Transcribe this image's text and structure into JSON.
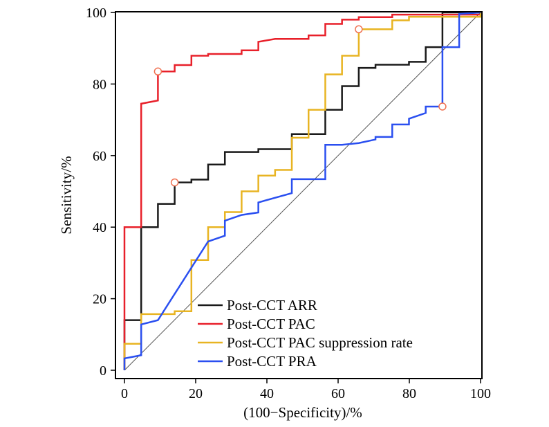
{
  "chart_data": {
    "type": "line",
    "title": "",
    "xlabel": "(100−Specificity)/%",
    "ylabel": "Sensitivity/%",
    "xlim": [
      0,
      100
    ],
    "ylim": [
      0,
      100
    ],
    "xticks": [
      "0",
      "20",
      "40",
      "60",
      "80",
      "100"
    ],
    "yticks": [
      "0",
      "20",
      "40",
      "60",
      "80",
      "100"
    ],
    "grid": false,
    "legend_position": "bottom-right",
    "reference_line": {
      "x": [
        0,
        100
      ],
      "y": [
        0,
        100
      ],
      "color": "#555555"
    },
    "series": [
      {
        "name": "Post-CCT ARR",
        "color": "#1a1a1a",
        "points": [
          [
            0,
            0
          ],
          [
            0,
            14
          ],
          [
            4.7,
            14
          ],
          [
            4.7,
            40
          ],
          [
            9.4,
            40
          ],
          [
            9.4,
            46.5
          ],
          [
            14.1,
            46.5
          ],
          [
            14.1,
            52.5
          ],
          [
            18.8,
            52.5
          ],
          [
            18.8,
            53.3
          ],
          [
            23.5,
            53.3
          ],
          [
            23.5,
            57.5
          ],
          [
            28.2,
            57.5
          ],
          [
            28.2,
            61
          ],
          [
            37.6,
            61
          ],
          [
            37.6,
            61.8
          ],
          [
            47,
            61.8
          ],
          [
            47,
            66
          ],
          [
            56.4,
            66
          ],
          [
            56.4,
            72.8
          ],
          [
            61.1,
            72.8
          ],
          [
            61.1,
            79.4
          ],
          [
            65.8,
            79.4
          ],
          [
            65.8,
            84.5
          ],
          [
            70.5,
            84.5
          ],
          [
            70.5,
            85.4
          ],
          [
            79.9,
            85.4
          ],
          [
            79.9,
            86.2
          ],
          [
            84.6,
            86.2
          ],
          [
            84.6,
            90.3
          ],
          [
            89.3,
            90.3
          ],
          [
            89.3,
            100
          ],
          [
            100,
            100
          ]
        ],
        "cutoff": [
          14.1,
          52.5
        ]
      },
      {
        "name": "Post-CCT PAC",
        "color": "#e8202a",
        "points": [
          [
            0,
            0
          ],
          [
            0,
            40
          ],
          [
            4.7,
            40
          ],
          [
            4.7,
            74.5
          ],
          [
            9.4,
            75.4
          ],
          [
            9.4,
            83.5
          ],
          [
            14.1,
            83.5
          ],
          [
            14.1,
            85.3
          ],
          [
            18.8,
            85.3
          ],
          [
            18.8,
            87.9
          ],
          [
            23.5,
            87.9
          ],
          [
            23.5,
            88.4
          ],
          [
            32.9,
            88.4
          ],
          [
            32.9,
            89.4
          ],
          [
            37.6,
            89.4
          ],
          [
            37.6,
            91.8
          ],
          [
            42.3,
            92.6
          ],
          [
            51.7,
            92.6
          ],
          [
            51.7,
            93.6
          ],
          [
            56.4,
            93.6
          ],
          [
            56.4,
            96.8
          ],
          [
            61.1,
            96.8
          ],
          [
            61.1,
            98
          ],
          [
            65.8,
            98
          ],
          [
            65.8,
            98.7
          ],
          [
            75.2,
            98.7
          ],
          [
            75.2,
            99.4
          ],
          [
            100,
            99.4
          ],
          [
            100,
            100
          ]
        ],
        "cutoff": [
          9.4,
          83.5
        ]
      },
      {
        "name": "Post-CCT PAC suppression rate",
        "color": "#e8b422",
        "points": [
          [
            0,
            0
          ],
          [
            0,
            7.4
          ],
          [
            4.7,
            7.4
          ],
          [
            4.7,
            15.7
          ],
          [
            14.1,
            15.7
          ],
          [
            14.1,
            16.5
          ],
          [
            18.8,
            16.5
          ],
          [
            18.8,
            30.8
          ],
          [
            23.5,
            30.8
          ],
          [
            23.5,
            40
          ],
          [
            28.2,
            40
          ],
          [
            28.2,
            44.2
          ],
          [
            32.9,
            44.2
          ],
          [
            32.9,
            50
          ],
          [
            37.6,
            50
          ],
          [
            37.6,
            54.4
          ],
          [
            42.3,
            54.4
          ],
          [
            42.3,
            56
          ],
          [
            47,
            56
          ],
          [
            47,
            65
          ],
          [
            51.7,
            65
          ],
          [
            51.7,
            72.8
          ],
          [
            56.4,
            72.8
          ],
          [
            56.4,
            82.7
          ],
          [
            61.1,
            82.7
          ],
          [
            61.1,
            87.9
          ],
          [
            65.8,
            87.9
          ],
          [
            65.8,
            95.3
          ],
          [
            75.2,
            95.3
          ],
          [
            75.2,
            97.8
          ],
          [
            79.9,
            97.8
          ],
          [
            79.9,
            98.8
          ],
          [
            100,
            98.8
          ],
          [
            100,
            100
          ]
        ],
        "cutoff": [
          65.8,
          95.3
        ]
      },
      {
        "name": "Post-CCT PRA",
        "color": "#2a4ff0",
        "points": [
          [
            0,
            0
          ],
          [
            0,
            3.3
          ],
          [
            4.7,
            4.2
          ],
          [
            4.7,
            12.8
          ],
          [
            9.4,
            14
          ],
          [
            23.5,
            36
          ],
          [
            28.2,
            37.6
          ],
          [
            28.2,
            41.8
          ],
          [
            32.9,
            43.4
          ],
          [
            37.6,
            44.1
          ],
          [
            37.6,
            46.9
          ],
          [
            47,
            49.5
          ],
          [
            47,
            53.4
          ],
          [
            56.4,
            53.4
          ],
          [
            56.4,
            63
          ],
          [
            61.1,
            63
          ],
          [
            65.8,
            63.5
          ],
          [
            70.5,
            64.5
          ],
          [
            70.5,
            65.2
          ],
          [
            75.2,
            65.2
          ],
          [
            75.2,
            68.7
          ],
          [
            79.9,
            68.7
          ],
          [
            79.9,
            70.3
          ],
          [
            84.6,
            71.9
          ],
          [
            84.6,
            73.7
          ],
          [
            89.3,
            73.7
          ],
          [
            89.3,
            90.3
          ],
          [
            94,
            90.3
          ],
          [
            94,
            99.6
          ],
          [
            100,
            100
          ]
        ],
        "cutoff": [
          89.3,
          73.7
        ]
      }
    ]
  }
}
